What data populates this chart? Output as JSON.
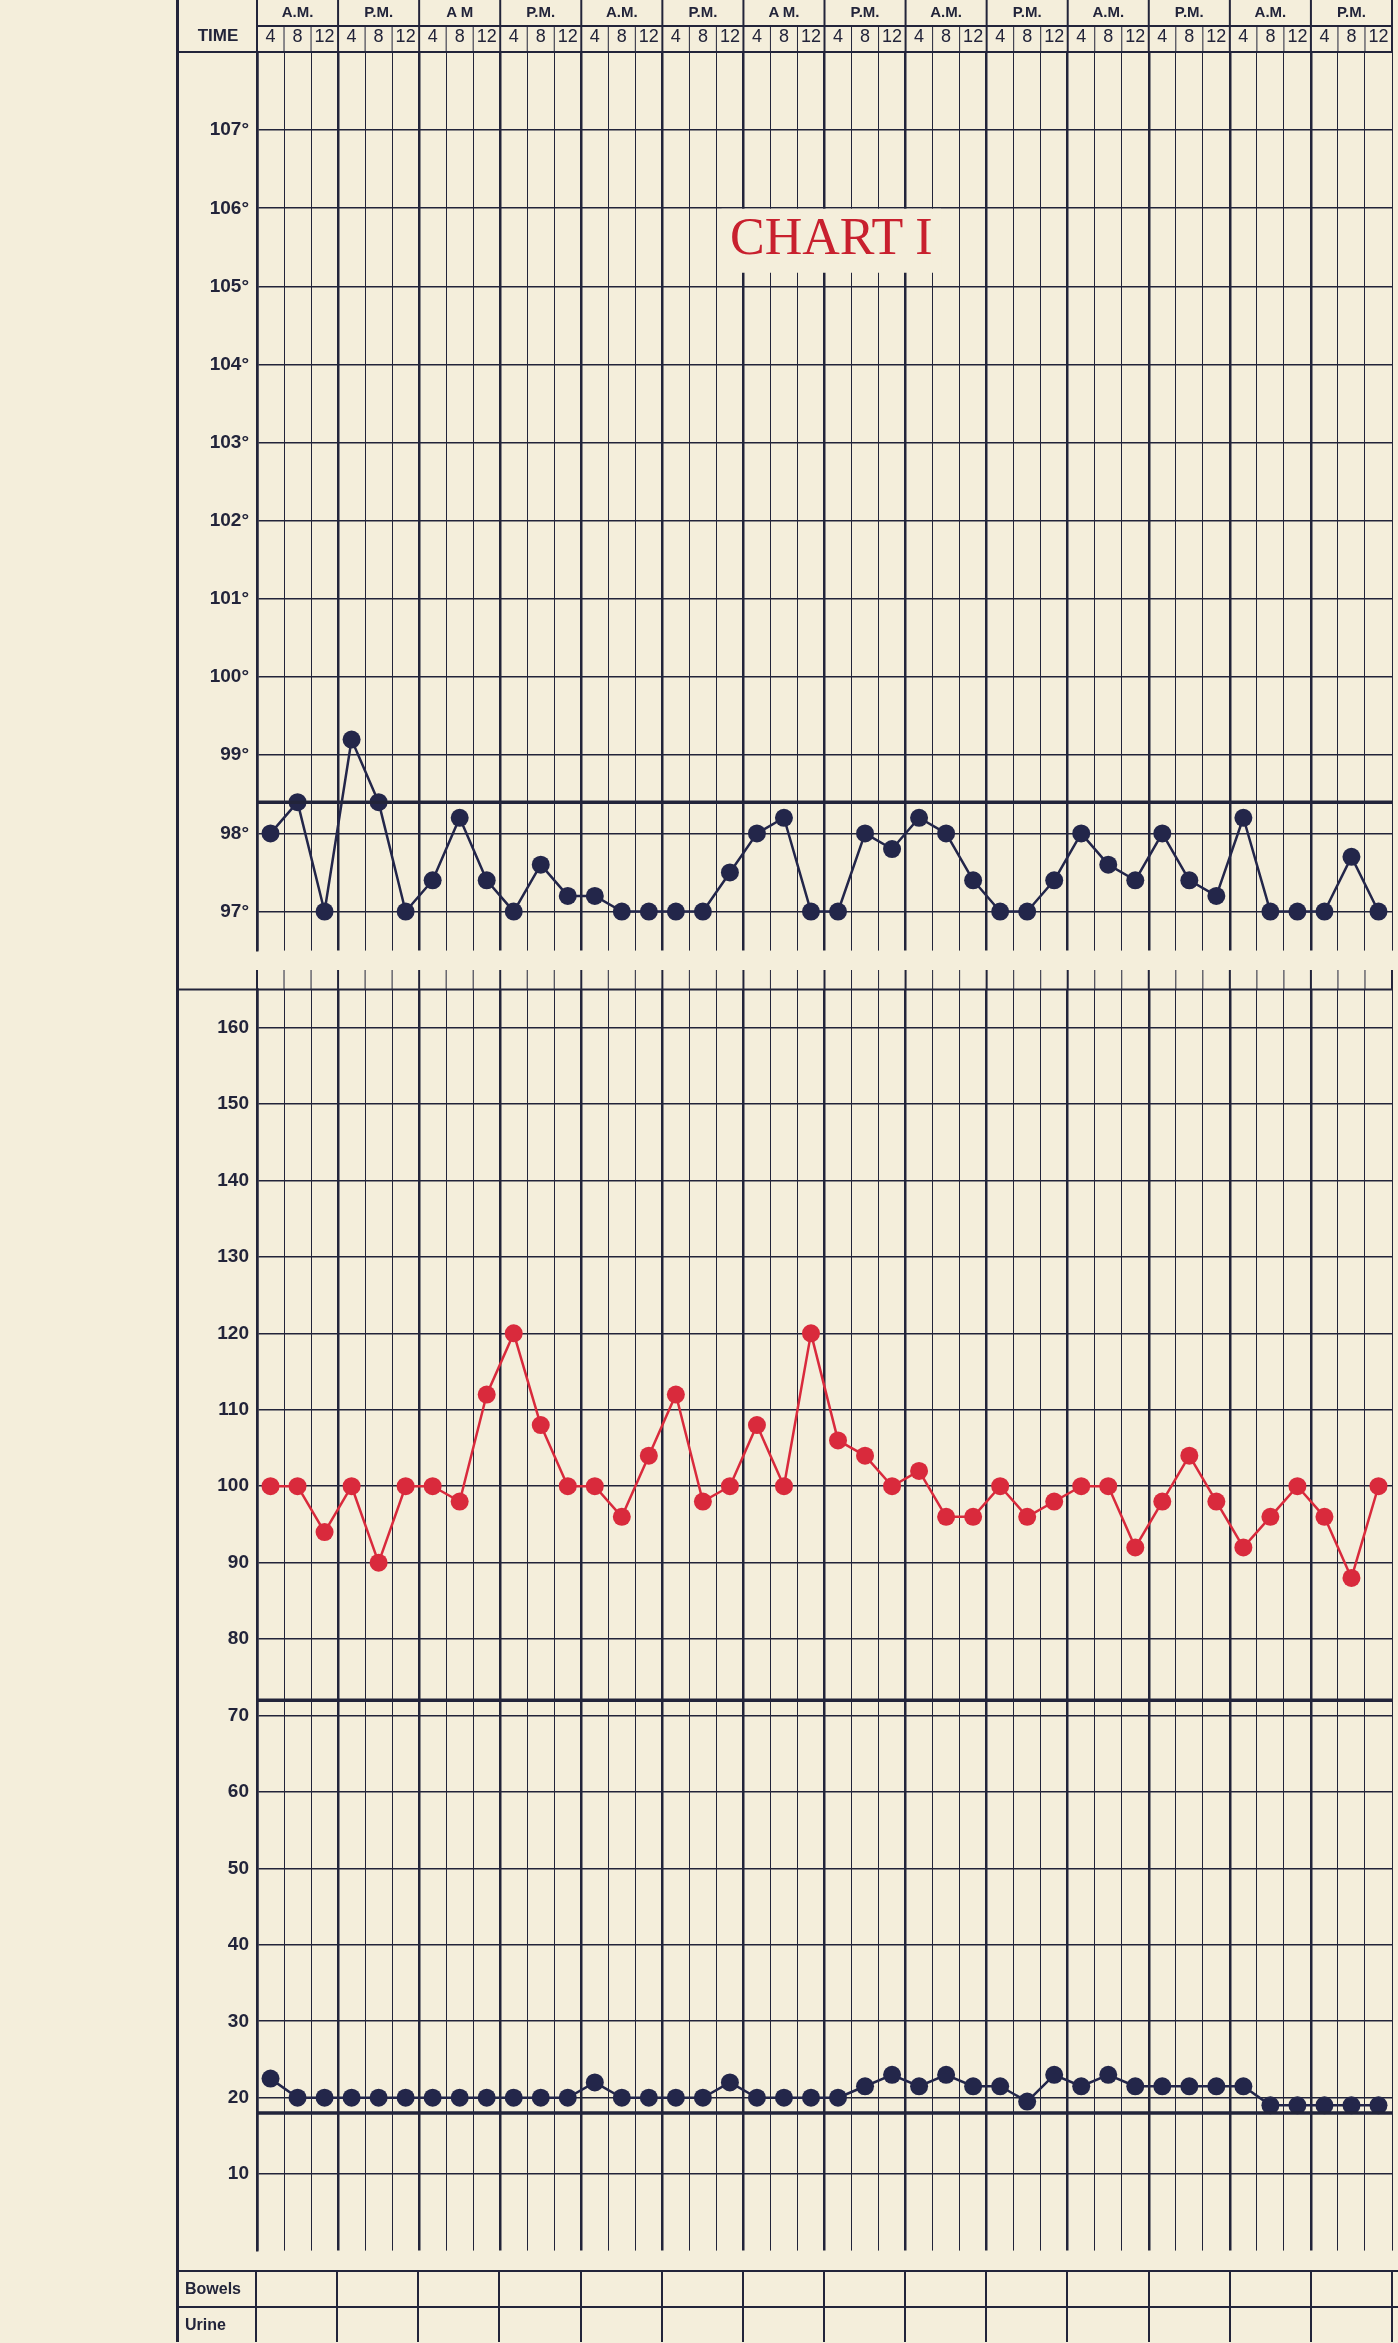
{
  "chart_data": [
    {
      "type": "line",
      "title": "CHART I",
      "xlabel": "TIME",
      "categories": [
        "4",
        "8",
        "12",
        "4",
        "8",
        "12",
        "4",
        "8",
        "12",
        "4",
        "8",
        "12",
        "4",
        "8",
        "12",
        "4",
        "8",
        "12",
        "4",
        "8",
        "12",
        "4",
        "8",
        "12",
        "4",
        "8",
        "12",
        "4",
        "8",
        "12",
        "4",
        "8",
        "12",
        "4",
        "8",
        "12",
        "4",
        "8",
        "12",
        "4",
        "8",
        "12"
      ],
      "annotations": [
        "A.M.",
        "P.M.",
        "A M",
        "P.M.",
        "A.M.",
        "P.M.",
        "A M.",
        "P.M.",
        "A.M.",
        "P.M.",
        "A.M.",
        "P.M.",
        "A.M.",
        "P.M."
      ],
      "series": [
        {
          "color": "#23264a",
          "values": [
            98.0,
            98.4,
            97.0,
            99.2,
            98.4,
            97.0,
            97.4,
            98.2,
            97.4,
            97.0,
            97.6,
            97.2,
            97.2,
            97.0,
            97.0,
            97.0,
            97.0,
            97.5,
            98.0,
            98.2,
            97.0,
            97.0,
            98.0,
            97.8,
            98.2,
            98.0,
            97.4,
            97.0,
            97.0,
            97.4,
            98.0,
            97.6,
            97.4,
            98.0,
            97.4,
            97.2,
            98.2,
            97.0,
            97.0,
            97.0,
            97.7,
            97.0
          ]
        }
      ],
      "ylim": [
        96.5,
        108
      ],
      "yticks": [
        {
          "value": 97,
          "label": "97°"
        },
        {
          "value": 98,
          "label": "98°"
        },
        {
          "value": 99,
          "label": "99°"
        },
        {
          "value": 100,
          "label": "100°"
        },
        {
          "value": 101,
          "label": "101°"
        },
        {
          "value": 102,
          "label": "102°"
        },
        {
          "value": 103,
          "label": "103°"
        },
        {
          "value": 104,
          "label": "104°"
        },
        {
          "value": 105,
          "label": "105°"
        },
        {
          "value": 106,
          "label": "106°"
        },
        {
          "value": 107,
          "label": "107°"
        }
      ],
      "ref_lines": [
        {
          "axis": "y",
          "value": 98.4
        }
      ],
      "grid": true,
      "legend": false,
      "marker": "circle"
    },
    {
      "type": "line",
      "categories": [
        null,
        null,
        null,
        null,
        null,
        null,
        null,
        null,
        null,
        null,
        null,
        null,
        null,
        null,
        null,
        null,
        null,
        null,
        null,
        null,
        null,
        null,
        null,
        null,
        null,
        null,
        null,
        null,
        null,
        null,
        null,
        null,
        null,
        null,
        null,
        null,
        null,
        null,
        null,
        null,
        null,
        null
      ],
      "series": [
        {
          "color": "#d92a3c",
          "values": [
            100,
            100,
            94,
            100,
            90,
            100,
            100,
            98,
            112,
            120,
            108,
            100,
            100,
            96,
            104,
            112,
            98,
            100,
            108,
            100,
            120,
            106,
            104,
            100,
            102,
            96,
            96,
            100,
            96,
            98,
            100,
            100,
            92,
            98,
            104,
            98,
            92,
            96,
            100,
            96,
            88,
            100
          ]
        },
        {
          "color": "#23264a",
          "values": [
            22.5,
            20,
            20,
            20,
            20,
            20,
            20,
            20,
            20,
            20,
            20,
            20,
            22,
            20,
            20,
            20,
            20,
            22,
            20,
            20,
            20,
            20,
            21.5,
            23,
            21.5,
            23,
            21.5,
            21.5,
            19.5,
            23,
            21.5,
            23,
            21.5,
            21.5,
            21.5,
            21.5,
            21.5,
            19,
            19,
            19,
            19,
            19
          ]
        }
      ],
      "ylim": [
        0,
        165
      ],
      "yticks": [
        10,
        20,
        30,
        40,
        50,
        60,
        70,
        80,
        90,
        100,
        110,
        120,
        130,
        140,
        150,
        160
      ],
      "ref_lines": [
        {
          "axis": "y",
          "value": 72
        },
        {
          "axis": "y",
          "value": 18
        }
      ],
      "annotations": [
        "Bowels",
        "Urine"
      ],
      "tick_labels": "y",
      "grid": true,
      "legend": false,
      "marker": "circle"
    }
  ]
}
